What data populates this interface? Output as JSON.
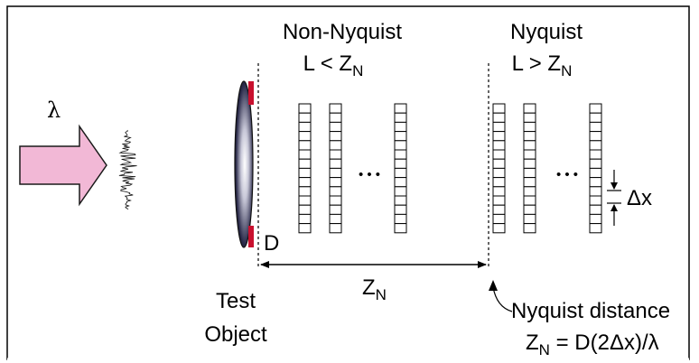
{
  "labels": {
    "lambda": "λ",
    "non_nyquist_title": "Non-Nyquist",
    "non_nyquist_cond_prefix": "L < Z",
    "nyquist_title": "Nyquist",
    "nyquist_cond_prefix": "L > Z",
    "subscript_n": "N",
    "delta_x": "Δx",
    "d_label": "D",
    "zn_main": "Z",
    "test_object_line1": "Test",
    "test_object_line2": "Object",
    "nyquist_distance": "Nyquist distance",
    "formula_prefix": "Z",
    "formula_suffix": " = D(2Δx)/λ",
    "dots": "• • •"
  },
  "colors": {
    "arrow_fill": "#f2b8d6",
    "arrow_stroke": "#1a1a1a",
    "aperture_red": "#c8102e",
    "lens_dark": "#1a1a3a",
    "frame": "#000000"
  },
  "detector_groups": {
    "non_nyquist_columns": 3,
    "nyquist_columns": 3,
    "cells_per_column": 14
  },
  "icons": [
    "incident-light-arrow",
    "noise-wavefront",
    "lens-object",
    "ellipsis-dots"
  ]
}
